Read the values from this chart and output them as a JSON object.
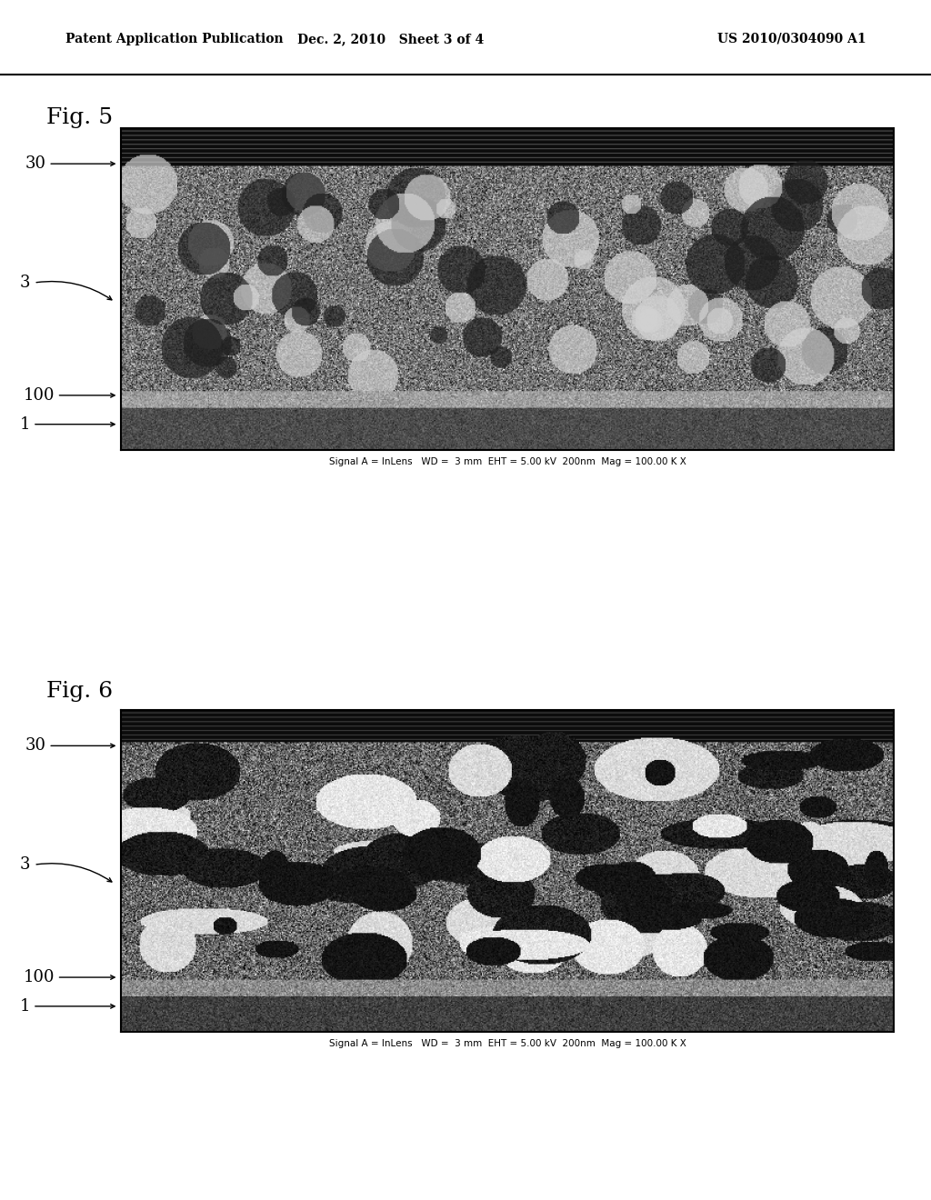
{
  "header_left": "Patent Application Publication",
  "header_mid": "Dec. 2, 2010   Sheet 3 of 4",
  "header_right": "US 2010/0304090 A1",
  "fig5_label": "Fig. 5",
  "fig6_label": "Fig. 6",
  "fig5_caption": "Signal A = InLens   WD =  3 mm  EHT = 5.00 kV  200nm  Mag = 100.00 K X",
  "fig6_caption": "Signal A = InLens   WD =  3 mm  EHT = 5.00 kV  200nm  Mag = 100.00 K X",
  "bg_color": "#ffffff"
}
